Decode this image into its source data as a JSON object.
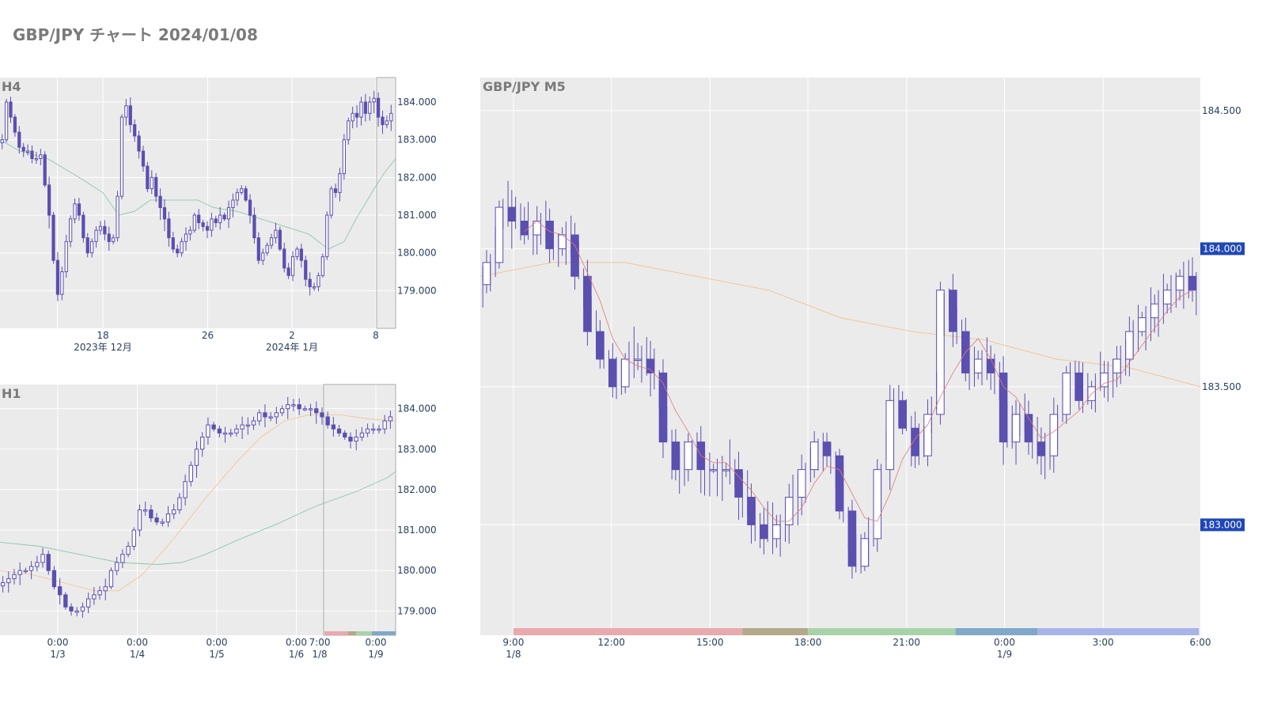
{
  "title": "GBP/JPY チャート 2024/01/08",
  "colors": {
    "plot_bg": "#ebebeb",
    "grid": "#ffffff",
    "candle": "#5b4fb0",
    "ma_green": "#8fc7a8",
    "ma_orange": "#f2c69a",
    "ma_red": "#e07a7a",
    "badge": "#1f47b8",
    "text": "#2a3f5f",
    "title": "#7a7a7a"
  },
  "chart_data": [
    {
      "name": "H4",
      "title": "H4",
      "type": "candlestick",
      "ylim": [
        178.0,
        184.65
      ],
      "y_ticks": [
        {
          "v": 179.0,
          "label": "179.000"
        },
        {
          "v": 180.0,
          "label": "180.000"
        },
        {
          "v": 181.0,
          "label": "181.000"
        },
        {
          "v": 182.0,
          "label": "182.000"
        },
        {
          "v": 183.0,
          "label": "183.000"
        },
        {
          "v": 184.0,
          "label": "184.000"
        }
      ],
      "x_ticks": [
        {
          "f": 0.26,
          "label": "18",
          "sub": "2023年 12月"
        },
        {
          "f": 0.525,
          "label": "26",
          "sub": ""
        },
        {
          "f": 0.738,
          "label": "2",
          "sub": "2024年 1月"
        },
        {
          "f": 0.95,
          "label": "8",
          "sub": ""
        }
      ],
      "x_grid": [
        0.145,
        0.26,
        0.525,
        0.738,
        0.95
      ],
      "highlight": [
        0.952,
        1.0
      ],
      "closes": [
        183.0,
        184.0,
        183.6,
        183.2,
        182.8,
        182.7,
        182.7,
        182.5,
        182.5,
        182.6,
        181.8,
        181.0,
        179.8,
        178.9,
        179.5,
        180.3,
        180.9,
        181.3,
        181.0,
        180.4,
        180.0,
        180.3,
        180.6,
        180.7,
        180.5,
        180.3,
        180.4,
        181.5,
        183.6,
        183.9,
        183.4,
        183.1,
        182.7,
        182.3,
        181.7,
        182.0,
        181.5,
        181.2,
        180.9,
        180.4,
        180.1,
        180.0,
        180.3,
        180.5,
        180.6,
        181.0,
        180.8,
        180.7,
        180.6,
        180.9,
        180.8,
        181.0,
        180.9,
        181.2,
        181.4,
        181.6,
        181.7,
        181.4,
        181.0,
        180.4,
        179.8,
        180.0,
        180.2,
        180.4,
        180.6,
        180.1,
        179.6,
        179.4,
        179.9,
        180.1,
        179.8,
        179.3,
        179.1,
        179.1,
        179.4,
        179.9,
        181.0,
        181.7,
        181.6,
        182.1,
        183.0,
        183.5,
        183.7,
        183.6,
        184.0,
        183.7,
        184.0,
        184.1,
        183.6,
        183.4,
        183.5,
        183.7
      ],
      "ma": [
        {
          "color_key": "ma_green",
          "width": 0.9,
          "points": [
            [
              0,
              183.0
            ],
            [
              0.05,
              182.7
            ],
            [
              0.12,
              182.5
            ],
            [
              0.2,
              182.0
            ],
            [
              0.26,
              181.6
            ],
            [
              0.3,
              181.0
            ],
            [
              0.34,
              181.1
            ],
            [
              0.38,
              181.4
            ],
            [
              0.44,
              181.4
            ],
            [
              0.5,
              181.4
            ],
            [
              0.54,
              181.2
            ],
            [
              0.6,
              181.1
            ],
            [
              0.66,
              180.9
            ],
            [
              0.72,
              180.7
            ],
            [
              0.78,
              180.5
            ],
            [
              0.83,
              180.1
            ],
            [
              0.87,
              180.3
            ],
            [
              0.9,
              180.9
            ],
            [
              0.94,
              181.6
            ],
            [
              0.97,
              182.1
            ],
            [
              1.0,
              182.5
            ]
          ]
        }
      ]
    },
    {
      "name": "H1",
      "title": "H1",
      "type": "candlestick",
      "ylim": [
        178.4,
        184.6
      ],
      "y_ticks": [
        {
          "v": 179.0,
          "label": "179.000"
        },
        {
          "v": 180.0,
          "label": "180.000"
        },
        {
          "v": 181.0,
          "label": "181.000"
        },
        {
          "v": 182.0,
          "label": "182.000"
        },
        {
          "v": 183.0,
          "label": "183.000"
        },
        {
          "v": 184.0,
          "label": "184.000"
        }
      ],
      "x_ticks": [
        {
          "f": 0.146,
          "label": "0:00",
          "sub": "1/3"
        },
        {
          "f": 0.347,
          "label": "0:00",
          "sub": "1/4"
        },
        {
          "f": 0.548,
          "label": "0:00",
          "sub": "1/5"
        },
        {
          "f": 0.749,
          "label": "0:00",
          "sub": "1/6"
        },
        {
          "f": 0.808,
          "label": "7:00",
          "sub": "1/8"
        },
        {
          "f": 0.95,
          "label": "0:00",
          "sub": "1/9"
        }
      ],
      "x_grid": [
        0.146,
        0.347,
        0.548,
        0.749,
        0.95
      ],
      "highlight": [
        0.818,
        1.0
      ],
      "session_band": true,
      "closes": [
        179.7,
        179.8,
        179.9,
        180.0,
        180.0,
        180.1,
        180.2,
        180.4,
        180.0,
        179.6,
        179.4,
        179.1,
        179.0,
        179.0,
        179.1,
        179.3,
        179.4,
        179.5,
        179.6,
        180.0,
        180.2,
        180.4,
        180.6,
        181.0,
        181.5,
        181.5,
        181.3,
        181.2,
        181.2,
        181.4,
        181.5,
        181.8,
        182.2,
        182.6,
        183.0,
        183.3,
        183.6,
        183.5,
        183.4,
        183.4,
        183.4,
        183.5,
        183.6,
        183.6,
        183.7,
        183.9,
        183.8,
        183.8,
        183.9,
        184.0,
        184.1,
        184.1,
        184.0,
        184.0,
        184.0,
        183.9,
        183.8,
        183.6,
        183.5,
        183.4,
        183.3,
        183.2,
        183.3,
        183.4,
        183.5,
        183.5,
        183.5,
        183.7,
        183.8
      ],
      "ma": [
        {
          "color_key": "ma_green",
          "width": 0.9,
          "points": [
            [
              0,
              180.7
            ],
            [
              0.1,
              180.6
            ],
            [
              0.2,
              180.4
            ],
            [
              0.3,
              180.2
            ],
            [
              0.4,
              180.15
            ],
            [
              0.46,
              180.2
            ],
            [
              0.52,
              180.4
            ],
            [
              0.6,
              180.75
            ],
            [
              0.7,
              181.15
            ],
            [
              0.8,
              181.6
            ],
            [
              0.9,
              181.95
            ],
            [
              0.98,
              182.3
            ],
            [
              1.0,
              182.45
            ]
          ]
        },
        {
          "color_key": "ma_orange",
          "width": 0.9,
          "points": [
            [
              0,
              180.0
            ],
            [
              0.08,
              179.9
            ],
            [
              0.16,
              179.7
            ],
            [
              0.24,
              179.5
            ],
            [
              0.3,
              179.5
            ],
            [
              0.36,
              179.9
            ],
            [
              0.44,
              180.8
            ],
            [
              0.52,
              181.8
            ],
            [
              0.6,
              182.7
            ],
            [
              0.66,
              183.3
            ],
            [
              0.72,
              183.7
            ],
            [
              0.78,
              183.85
            ],
            [
              0.86,
              183.85
            ],
            [
              0.93,
              183.75
            ],
            [
              1.0,
              183.7
            ]
          ]
        }
      ]
    },
    {
      "name": "M5",
      "title": "GBP/JPY M5",
      "type": "candlestick",
      "ylim": [
        182.6,
        184.62
      ],
      "y_ticks": [
        {
          "v": 183.0,
          "label": "183.000"
        },
        {
          "v": 183.5,
          "label": "183.500"
        },
        {
          "v": 184.0,
          "label": "184.000"
        },
        {
          "v": 184.5,
          "label": "184.500"
        }
      ],
      "badges": [
        {
          "v": 184.0,
          "label": "184.000"
        },
        {
          "v": 183.0,
          "label": "183.000"
        }
      ],
      "x_ticks": [
        {
          "f": 0.046,
          "label": "9:00",
          "sub": "1/8"
        },
        {
          "f": 0.182,
          "label": "12:00",
          "sub": ""
        },
        {
          "f": 0.319,
          "label": "15:00",
          "sub": ""
        },
        {
          "f": 0.455,
          "label": "18:00",
          "sub": ""
        },
        {
          "f": 0.592,
          "label": "21:00",
          "sub": ""
        },
        {
          "f": 0.728,
          "label": "0:00",
          "sub": "1/9"
        },
        {
          "f": 0.865,
          "label": "3:00",
          "sub": ""
        },
        {
          "f": 1.0,
          "label": "6:00",
          "sub": ""
        }
      ],
      "x_grid": [
        0.046,
        0.182,
        0.319,
        0.455,
        0.592,
        0.728,
        0.865
      ],
      "sessions": [
        {
          "from": 0.046,
          "to": 0.364,
          "color": "#e9a9ad"
        },
        {
          "from": 0.364,
          "to": 0.455,
          "color": "#b3a98a"
        },
        {
          "from": 0.455,
          "to": 0.66,
          "color": "#a8d3a8"
        },
        {
          "from": 0.66,
          "to": 0.774,
          "color": "#7fa8c9"
        },
        {
          "from": 0.774,
          "to": 0.998,
          "color": "#a8b3ea"
        }
      ],
      "closes": [
        183.95,
        184.15,
        184.1,
        184.05,
        184.1,
        184.0,
        184.05,
        183.9,
        183.7,
        183.6,
        183.5,
        183.6,
        183.6,
        183.55,
        183.3,
        183.2,
        183.3,
        183.2,
        183.2,
        183.2,
        183.1,
        183.0,
        182.95,
        183.0,
        183.1,
        183.2,
        183.3,
        183.25,
        183.05,
        182.85,
        182.95,
        183.2,
        183.45,
        183.35,
        183.25,
        183.4,
        183.85,
        183.7,
        183.55,
        183.6,
        183.55,
        183.3,
        183.4,
        183.3,
        183.25,
        183.4,
        183.55,
        183.45,
        183.5,
        183.55,
        183.6,
        183.7,
        183.75,
        183.8,
        183.85,
        183.9,
        183.85
      ]
    }
  ]
}
